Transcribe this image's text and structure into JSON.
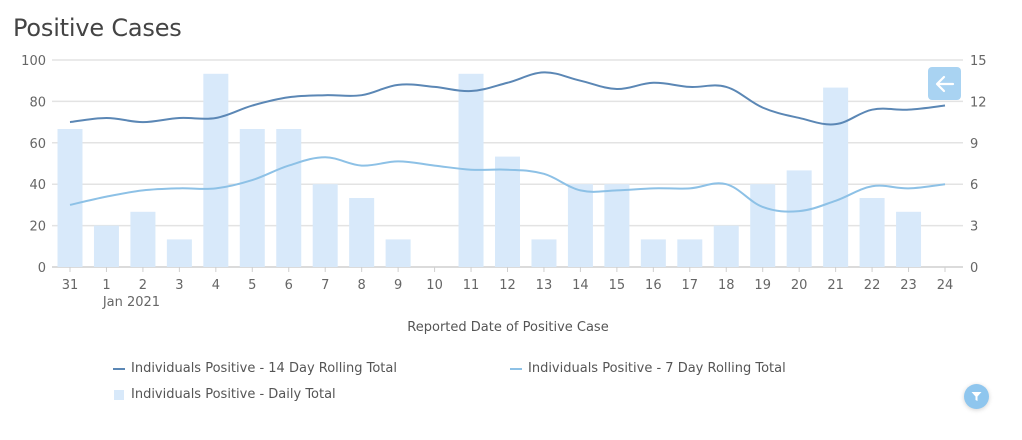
{
  "title": "Positive Cases",
  "controls": {
    "back_button_icon": "arrow-left-icon",
    "filter_button_icon": "filter-icon"
  },
  "colors": {
    "rolling14": "#5b87b5",
    "rolling7": "#8dc1e6",
    "daily": "#d8e9fa",
    "grid": "#e3e3e3",
    "back_button": "#a9d3f2",
    "filter_button": "#8fc6ee"
  },
  "chart_data": {
    "type": "bar",
    "title": "Positive Cases",
    "xlabel": "Reported Date of Positive Case",
    "categories": [
      "31",
      "1",
      "2",
      "3",
      "4",
      "5",
      "6",
      "7",
      "8",
      "9",
      "10",
      "11",
      "12",
      "13",
      "14",
      "15",
      "16",
      "17",
      "18",
      "19",
      "20",
      "21",
      "22",
      "23",
      "24"
    ],
    "category_sublabel": {
      "index": 1,
      "text": "Jan 2021"
    },
    "y_left": {
      "ylim": [
        0,
        100
      ],
      "ticks": [
        "0",
        "20",
        "40",
        "60",
        "80",
        "100"
      ]
    },
    "y_right": {
      "ylim": [
        0,
        15
      ],
      "ticks": [
        "0",
        "3",
        "6",
        "9",
        "12",
        "15"
      ]
    },
    "grid": true,
    "legend_position": "bottom",
    "series": [
      {
        "name": "Individuals Positive - 14 Day Rolling Total",
        "type": "line",
        "axis": "left",
        "values": [
          70,
          72,
          70,
          72,
          72,
          78,
          82,
          83,
          83,
          88,
          87,
          85,
          89,
          94,
          90,
          86,
          89,
          87,
          87,
          77,
          72,
          69,
          76,
          76,
          78
        ]
      },
      {
        "name": "Individuals Positive - 7 Day Rolling Total",
        "type": "line",
        "axis": "left",
        "values": [
          30,
          34,
          37,
          38,
          38,
          42,
          49,
          53,
          49,
          51,
          49,
          47,
          47,
          45,
          37,
          37,
          38,
          38,
          40,
          29,
          27,
          32,
          39,
          38,
          40
        ]
      },
      {
        "name": "Individuals Positive - Daily Total",
        "type": "bar",
        "axis": "right",
        "values": [
          10,
          3,
          4,
          2,
          14,
          10,
          10,
          6,
          5,
          2,
          0,
          14,
          8,
          2,
          6,
          6,
          2,
          2,
          3,
          6,
          7,
          13,
          5,
          4,
          0
        ]
      }
    ]
  }
}
